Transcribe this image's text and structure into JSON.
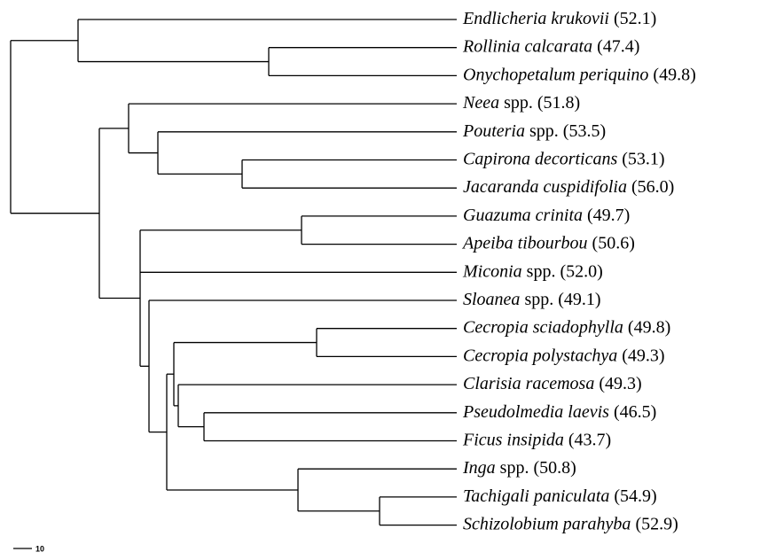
{
  "leaves": [
    {
      "name": "Endlicheria krukovii",
      "value": "(52.1)"
    },
    {
      "name": "Rollinia calcarata",
      "value": "(47.4)"
    },
    {
      "name": "Onychopetalum periquino",
      "value": "(49.8)"
    },
    {
      "name": "Neea",
      "qualifier": "spp.",
      "value": "(51.8)"
    },
    {
      "name": "Pouteria",
      "qualifier": "spp.",
      "value": "(53.5)"
    },
    {
      "name": "Capirona decorticans",
      "value": "(53.1)"
    },
    {
      "name": "Jacaranda cuspidifolia",
      "value": "(56.0)"
    },
    {
      "name": "Guazuma crinita",
      "value": "(49.7)"
    },
    {
      "name": "Apeiba tibourbou",
      "value": "(50.6)"
    },
    {
      "name": "Miconia",
      "qualifier": "spp.",
      "value": "(52.0)"
    },
    {
      "name": "Sloanea",
      "qualifier": "spp.",
      "value": "(49.1)"
    },
    {
      "name": "Cecropia sciadophylla",
      "value": "(49.8)"
    },
    {
      "name": "Cecropia polystachya",
      "value": "(49.3)"
    },
    {
      "name": "Clarisia racemosa",
      "value": "(49.3)"
    },
    {
      "name": "Pseudolmedia laevis",
      "value": "(46.5)"
    },
    {
      "name": "Ficus insipida",
      "value": "(43.7)"
    },
    {
      "name": "Inga",
      "qualifier": "spp.",
      "value": "(50.8)"
    },
    {
      "name": "Tachigali paniculata",
      "value": "(54.9)"
    },
    {
      "name": "Schizolobium parahyba",
      "value": "(52.9)"
    }
  ],
  "scale_bar": {
    "label": "10"
  }
}
